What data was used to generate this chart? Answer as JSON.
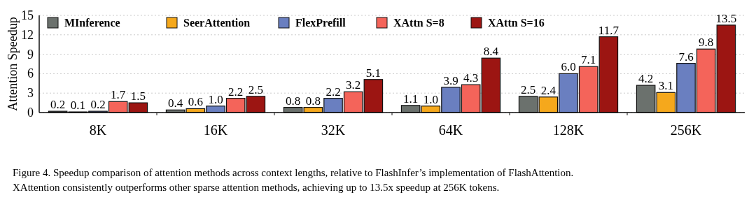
{
  "chart_data": {
    "type": "bar",
    "ylabel": "Attention Speedup",
    "categories": [
      "8K",
      "16K",
      "32K",
      "64K",
      "128K",
      "256K"
    ],
    "series": [
      {
        "name": "MInference",
        "color": "#6b716d",
        "values": [
          0.2,
          0.4,
          0.8,
          1.1,
          2.5,
          4.2
        ],
        "value_labels": [
          "0.2",
          "0.4",
          "0.8",
          "1.1",
          "2.5",
          "4.2"
        ]
      },
      {
        "name": "SeerAttention",
        "color": "#f5a81c",
        "values": [
          0.1,
          0.6,
          0.8,
          1.0,
          2.4,
          3.1
        ],
        "value_labels": [
          "0.1",
          "0.6",
          "0.8",
          "1.0",
          "2.4",
          "3.1"
        ]
      },
      {
        "name": "FlexPrefill",
        "color": "#6a7fc0",
        "values": [
          0.2,
          1.0,
          2.2,
          3.9,
          6.0,
          7.6
        ],
        "value_labels": [
          "0.2",
          "1.0",
          "2.2",
          "3.9",
          "6.0",
          "7.6"
        ]
      },
      {
        "name": "XAttn S=8",
        "color": "#f4645a",
        "values": [
          1.7,
          2.2,
          3.2,
          4.3,
          7.1,
          9.8
        ],
        "value_labels": [
          "1.7",
          "2.2",
          "3.2",
          "4.3",
          "7.1",
          "9.8"
        ]
      },
      {
        "name": "XAttn S=16",
        "color": "#9c1512",
        "values": [
          1.5,
          2.5,
          5.1,
          8.4,
          11.7,
          13.5
        ],
        "value_labels": [
          "1.5",
          "2.5",
          "5.1",
          "8.4",
          "11.7",
          "13.5"
        ]
      }
    ],
    "ylim": [
      0,
      15
    ],
    "yticks": [
      0,
      3,
      6,
      9,
      12,
      15
    ],
    "grid": "y",
    "legend": "top left",
    "annotations": [
      "Figure 4. Speedup comparison of attention methods across context lengths, relative to FlashInfer’s implementation of FlashAttention.",
      "XAttention consistently outperforms other sparse attention methods, achieving up to 13.5x speedup at 256K tokens."
    ]
  }
}
